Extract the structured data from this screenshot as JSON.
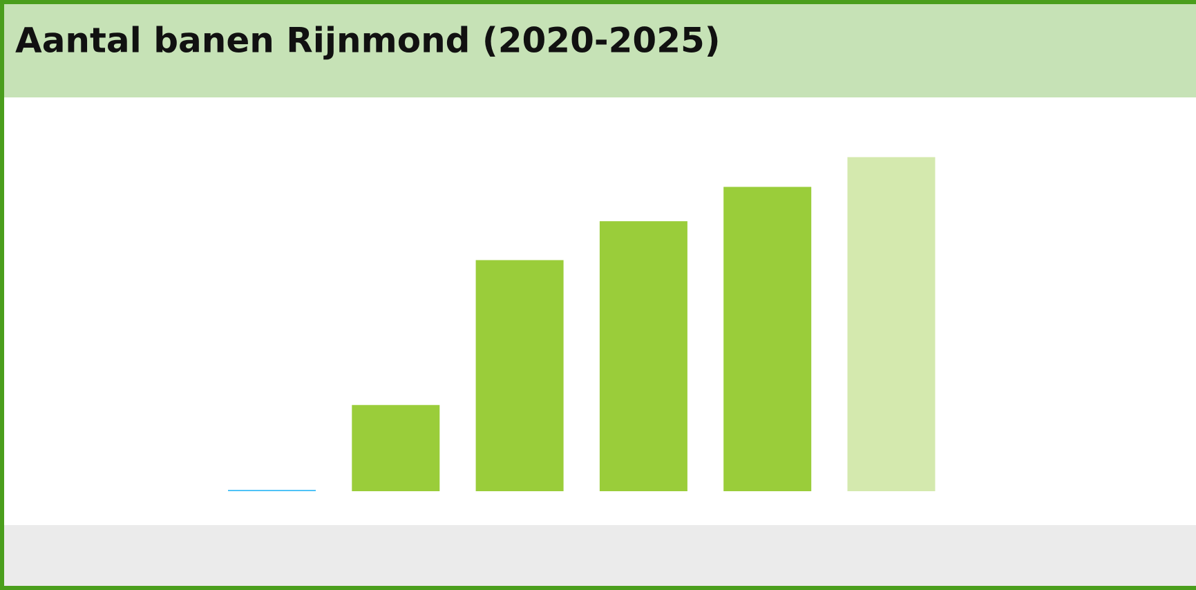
{
  "chart_data": {
    "type": "bar",
    "title": "Aantal banen Rijnmond (2020-2025)",
    "categories": [
      null,
      null,
      null,
      null,
      null,
      null
    ],
    "values": [
      0,
      113,
      303,
      354,
      399,
      438
    ],
    "colors": [
      "#4fc3f7",
      "#9acd3a",
      "#9acd3a",
      "#9acd3a",
      "#9acd3a",
      "#d4e9ae"
    ],
    "ylim": [
      0,
      500
    ]
  }
}
